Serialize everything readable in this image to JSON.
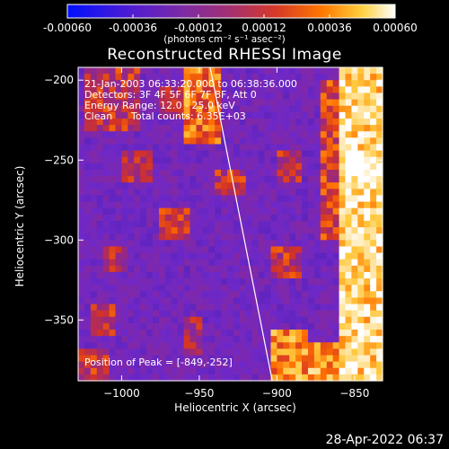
{
  "colorbar": {
    "ticks": [
      "-0.00060",
      "-0.00036",
      "-0.00012",
      "0.00012",
      "0.00036",
      "0.00060"
    ],
    "tick_values": [
      -0.0006,
      -0.00036,
      -0.00012,
      0.00012,
      0.00036,
      0.0006
    ],
    "units": "(photons cm⁻² s⁻¹ asec⁻²)",
    "colors": [
      "#0010ff",
      "#4d1bd0",
      "#7a2aa0",
      "#a0306e",
      "#d23a28",
      "#ff7a00",
      "#ffd040",
      "#ffffff"
    ]
  },
  "title": "Reconstructed RHESSI Image",
  "info": {
    "line1": "21-Jan-2003 06:33:20.000 to 06:38:36.000",
    "line2": "Detectors: 3F 4F 5F 6F 7F 8F, Att 0",
    "line3": "Energy Range: 12.0 - 25.0 keV",
    "line4_method": "Clean",
    "line4_counts": "Total counts: 6.35E+03",
    "peak": "Position of Peak = [-849,-252]"
  },
  "footer": {
    "date": "28-Apr-2022 06:37"
  },
  "chart_data": {
    "type": "heatmap",
    "title": "Reconstructed RHESSI Image",
    "xlabel": "Heliocentric X (arcsec)",
    "ylabel": "Heliocentric Y (arcsec)",
    "xlim": [
      -1028,
      -832
    ],
    "ylim": [
      -388,
      -192
    ],
    "x_ticks": [
      -1000,
      -950,
      -900,
      -850
    ],
    "x_tick_labels": [
      "−1000",
      "−950",
      "−900",
      "−850"
    ],
    "y_ticks": [
      -200,
      -250,
      -300,
      -350
    ],
    "y_tick_labels": [
      "−200",
      "−250",
      "−300",
      "−350"
    ],
    "limb_line": [
      [
        -943,
        -192
      ],
      [
        -903,
        -388
      ]
    ],
    "peak": [
      -849,
      -252
    ],
    "regions": [
      {
        "x": [
          -860,
          -832
        ],
        "y": [
          -388,
          -192
        ],
        "level": 0.9
      },
      {
        "x": [
          -870,
          -860
        ],
        "y": [
          -300,
          -200
        ],
        "level": 0.6
      },
      {
        "x": [
          -960,
          -935
        ],
        "y": [
          -240,
          -192
        ],
        "level": 0.7
      },
      {
        "x": [
          -975,
          -955
        ],
        "y": [
          -225,
          -205
        ],
        "level": 0.55
      },
      {
        "x": [
          -1025,
          -990
        ],
        "y": [
          -230,
          -192
        ],
        "level": 0.55
      },
      {
        "x": [
          -1000,
          -980
        ],
        "y": [
          -265,
          -245
        ],
        "level": 0.5
      },
      {
        "x": [
          -940,
          -920
        ],
        "y": [
          -270,
          -255
        ],
        "level": 0.55
      },
      {
        "x": [
          -900,
          -885
        ],
        "y": [
          -265,
          -245
        ],
        "level": 0.55
      },
      {
        "x": [
          -975,
          -955
        ],
        "y": [
          -300,
          -280
        ],
        "level": 0.6
      },
      {
        "x": [
          -1010,
          -995
        ],
        "y": [
          -320,
          -305
        ],
        "level": 0.5
      },
      {
        "x": [
          -905,
          -885
        ],
        "y": [
          -325,
          -305
        ],
        "level": 0.55
      },
      {
        "x": [
          -1020,
          -1005
        ],
        "y": [
          -360,
          -340
        ],
        "level": 0.55
      },
      {
        "x": [
          -960,
          -950
        ],
        "y": [
          -370,
          -350
        ],
        "level": 0.5
      },
      {
        "x": [
          -905,
          -880
        ],
        "y": [
          -388,
          -355
        ],
        "level": 0.75
      },
      {
        "x": [
          -880,
          -860
        ],
        "y": [
          -388,
          -365
        ],
        "level": 0.8
      },
      {
        "x": [
          -1028,
          -1010
        ],
        "y": [
          -388,
          -370
        ],
        "level": 0.55
      }
    ]
  }
}
